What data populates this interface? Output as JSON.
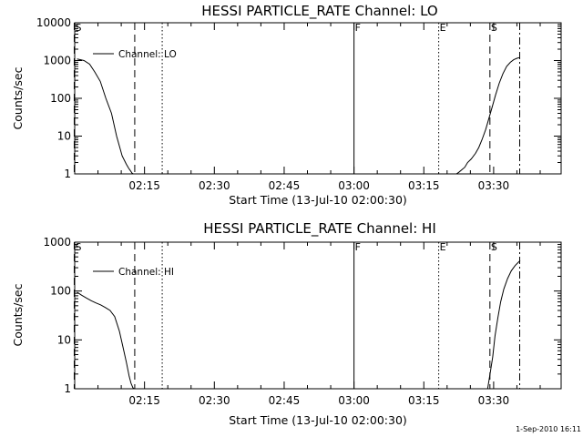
{
  "timestamp": "1-Sep-2010 16:11",
  "chart_data": [
    {
      "type": "line",
      "title": "HESSI PARTICLE_RATE Channel: LO",
      "xlabel": "Start Time (13-Jul-10 02:00:30)",
      "ylabel": "Counts/sec",
      "xlim": [
        2.5,
        218.5
      ],
      "ylim_log10": [
        0,
        4
      ],
      "y_scale": "log",
      "grid": false,
      "legend_position": "top-left",
      "x_ticks": [
        {
          "value": 15,
          "label": "02:15"
        },
        {
          "value": 30,
          "label": "02:30"
        },
        {
          "value": 45,
          "label": "02:45"
        },
        {
          "value": 60,
          "label": "03:00"
        },
        {
          "value": 75,
          "label": "03:15"
        },
        {
          "value": 90,
          "label": "03:30"
        }
      ],
      "y_ticks": [
        {
          "value": 1,
          "label": "1"
        },
        {
          "value": 10,
          "label": "10"
        },
        {
          "value": 100,
          "label": "100"
        },
        {
          "value": 1000,
          "label": "1000"
        },
        {
          "value": 10000,
          "label": "10000"
        }
      ],
      "series": [
        {
          "name": "Channel: LO",
          "x": [
            0.5,
            2.0,
            3.2,
            4.3,
            5.5,
            6.7,
            7.9,
            9.0,
            10.2,
            11.1,
            11.6,
            12.0,
            12.3,
            12.6,
            12.9,
            null,
            82.0,
            82.5,
            83.2,
            83.8,
            84.4,
            85.2,
            86.1,
            86.8,
            87.5,
            88.3,
            89.0,
            89.7,
            90.4,
            91.2,
            92.0,
            92.8,
            93.6,
            94.3,
            95.0,
            95.6
          ],
          "y": [
            1100,
            1000,
            800,
            500,
            280,
            100,
            40,
            10,
            3,
            1.8,
            1.4,
            1.2,
            1.05,
            1.0,
            1.0,
            null,
            1.0,
            1.1,
            1.3,
            1.5,
            2.0,
            2.5,
            3.5,
            5,
            8,
            15,
            30,
            60,
            120,
            250,
            450,
            700,
            900,
            1050,
            1150,
            1200
          ]
        }
      ],
      "markers": [
        {
          "label": "S",
          "x": -0.1,
          "style": "dashed"
        },
        {
          "label": "",
          "x": 12.9,
          "style": "dashed"
        },
        {
          "label": "",
          "x": 18.8,
          "style": "dotted"
        },
        {
          "label": "F",
          "x": 60.0,
          "style": "solid"
        },
        {
          "label": "E",
          "x": 78.2,
          "style": "dotted"
        },
        {
          "label": "S",
          "x": 89.2,
          "style": "dashed"
        },
        {
          "label": "",
          "x": 95.6,
          "style": "dashdot"
        }
      ]
    },
    {
      "type": "line",
      "title": "HESSI PARTICLE_RATE Channel: HI",
      "xlabel": "Start Time (13-Jul-10 02:00:30)",
      "ylabel": "Counts/sec",
      "xlim": [
        2.5,
        218.5
      ],
      "ylim_log10": [
        0,
        3
      ],
      "y_scale": "log",
      "grid": false,
      "legend_position": "top-left",
      "x_ticks": [
        {
          "value": 15,
          "label": "02:15"
        },
        {
          "value": 30,
          "label": "02:30"
        },
        {
          "value": 45,
          "label": "02:45"
        },
        {
          "value": 60,
          "label": "03:00"
        },
        {
          "value": 75,
          "label": "03:15"
        },
        {
          "value": 90,
          "label": "03:30"
        }
      ],
      "y_ticks": [
        {
          "value": 1,
          "label": "1"
        },
        {
          "value": 10,
          "label": "10"
        },
        {
          "value": 100,
          "label": "100"
        },
        {
          "value": 1000,
          "label": "1000"
        }
      ],
      "series": [
        {
          "name": "Channel: HI",
          "x": [
            0.5,
            1.5,
            2.5,
            3.6,
            4.6,
            5.6,
            6.6,
            7.6,
            8.6,
            9.6,
            10.4,
            11.1,
            11.7,
            12.1,
            12.5,
            12.8,
            null,
            88.7,
            88.9,
            89.3,
            89.8,
            90.3,
            90.9,
            91.5,
            92.2,
            93.0,
            93.8,
            94.6,
            95.2,
            95.7
          ],
          "y": [
            95,
            82,
            72,
            63,
            57,
            52,
            46,
            40,
            30,
            15,
            7,
            3.5,
            1.8,
            1.3,
            1.05,
            1.0,
            null,
            1.0,
            1.3,
            2.2,
            4.5,
            12,
            28,
            60,
            110,
            180,
            260,
            330,
            380,
            420
          ]
        }
      ],
      "markers": [
        {
          "label": "S",
          "x": -0.1,
          "style": "dashed"
        },
        {
          "label": "",
          "x": 12.9,
          "style": "dashed"
        },
        {
          "label": "",
          "x": 18.8,
          "style": "dotted"
        },
        {
          "label": "F",
          "x": 60.0,
          "style": "solid"
        },
        {
          "label": "E",
          "x": 78.2,
          "style": "dotted"
        },
        {
          "label": "S",
          "x": 89.2,
          "style": "dashed"
        },
        {
          "label": "",
          "x": 95.6,
          "style": "dashdot"
        }
      ]
    }
  ]
}
